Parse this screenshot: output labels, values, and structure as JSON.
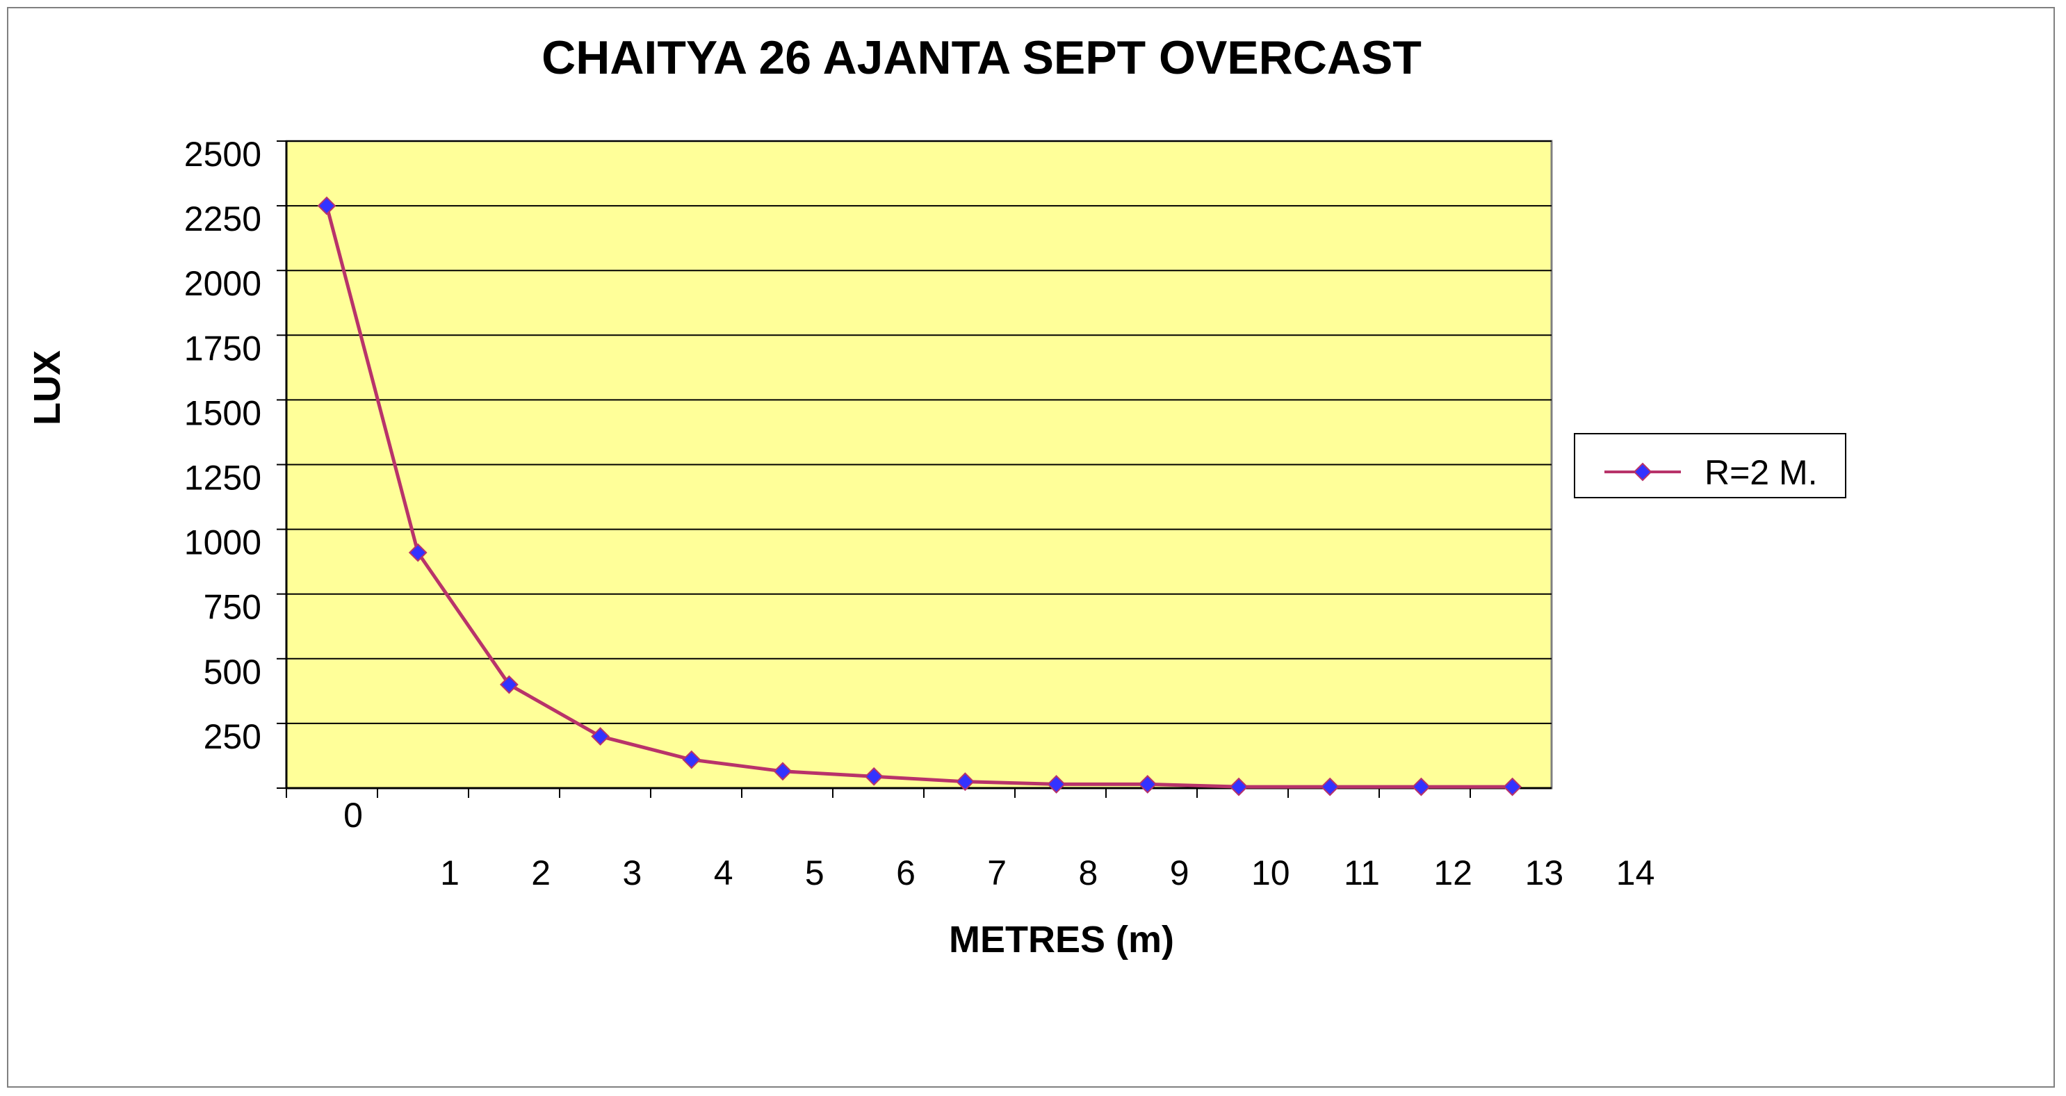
{
  "chart_data": {
    "type": "line",
    "title": "CHAITYA 26 AJANTA SEPT OVERCAST",
    "xlabel": "METRES (m)",
    "ylabel": "LUX",
    "y_tick_labels": [
      "250",
      "500",
      "750",
      "1000",
      "1250",
      "1500",
      "1750",
      "2000",
      "2250",
      "2500"
    ],
    "x_tick_labels": [
      "0",
      "1",
      "2",
      "3",
      "4",
      "5",
      "6",
      "7",
      "8",
      "9",
      "10",
      "11",
      "12",
      "13",
      "14"
    ],
    "ylim": [
      0,
      2500
    ],
    "grid": true,
    "legend_position": "right",
    "plot_background": "#FFFF99",
    "series": [
      {
        "name": "R=2 M.",
        "color": "#B8336A",
        "marker_color": "#3333FF",
        "marker": "diamond",
        "x": [
          0,
          1,
          2,
          3,
          4,
          5,
          6,
          7,
          8,
          9,
          10,
          11,
          12,
          13
        ],
        "values": [
          2250,
          910,
          400,
          200,
          110,
          65,
          45,
          25,
          15,
          15,
          5,
          5,
          5,
          5
        ]
      }
    ]
  }
}
